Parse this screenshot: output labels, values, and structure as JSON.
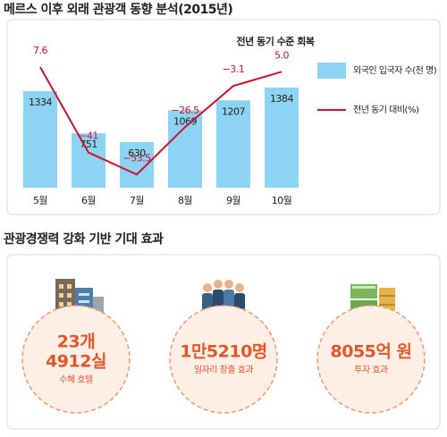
{
  "title": "메르스 이후 외래 관광객 동향 분석(2015년)",
  "chart_data": {
    "type": "bar_line",
    "categories": [
      "5월",
      "6월",
      "7월",
      "8월",
      "9월",
      "10월"
    ],
    "series": [
      {
        "name": "외국인 입국자 수(천 명)",
        "type": "bar",
        "color": "#8dd3f3",
        "values": [
          1334,
          751,
          630,
          1069,
          1207,
          1384
        ]
      },
      {
        "name": "전년 동기 대비(%)",
        "type": "line",
        "axis": "y2",
        "color": "#d0102e",
        "values": [
          7.6,
          -41,
          -53.5,
          -26.5,
          -3.1,
          5.0
        ],
        "value_labels": [
          "7.6",
          "−41",
          "−53.5",
          "−26.5",
          "−3.1",
          "5.0"
        ]
      }
    ],
    "annotation": "전년 동기 수준 회복",
    "ylim": [
      0,
      2100
    ],
    "y2lim": [
      -61,
      25.5
    ]
  },
  "section_title": "관광경쟁력 강화 기반 기대 효과",
  "effects": [
    {
      "lines": [
        "23개",
        "4912실"
      ],
      "caption": "수혜 호텔"
    },
    {
      "lines": [
        "1만5210명"
      ],
      "caption": "일자리 창출 효과"
    },
    {
      "lines": [
        "8055억 원"
      ],
      "caption": "투자 효과"
    }
  ]
}
